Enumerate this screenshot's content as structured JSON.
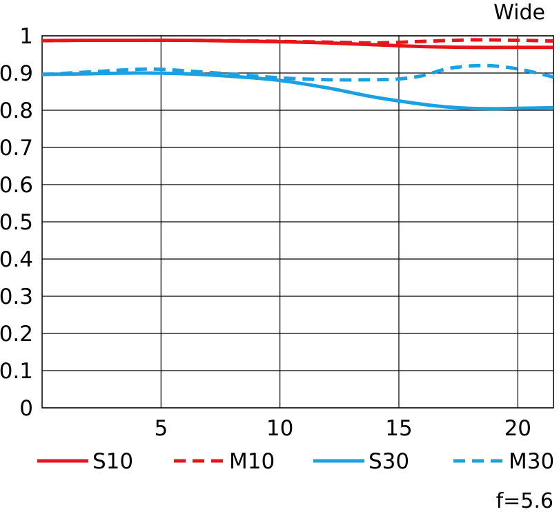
{
  "chart_data": {
    "type": "line",
    "title": "Wide",
    "footnote": "f=5.6",
    "xlabel": "",
    "ylabel": "",
    "xlim": [
      0,
      21.5
    ],
    "ylim": [
      0,
      1
    ],
    "x_ticks": [
      5,
      10,
      15,
      20
    ],
    "x_tick_labels": [
      "5",
      "10",
      "15",
      "20"
    ],
    "y_ticks": [
      0,
      0.1,
      0.2,
      0.3,
      0.4,
      0.5,
      0.6,
      0.7,
      0.8,
      0.9,
      1
    ],
    "y_tick_labels": [
      "0",
      "0.1",
      "0.2",
      "0.3",
      "0.4",
      "0.5",
      "0.6",
      "0.7",
      "0.8",
      "0.9",
      "1"
    ],
    "grid": true,
    "legend_position": "bottom",
    "series": [
      {
        "name": "S10",
        "color": "#e8141c",
        "dashed": false,
        "x": [
          0,
          2,
          4,
          6,
          8,
          10,
          12,
          14,
          16,
          18,
          20,
          21.5
        ],
        "y": [
          0.987,
          0.988,
          0.988,
          0.988,
          0.986,
          0.984,
          0.981,
          0.976,
          0.971,
          0.969,
          0.969,
          0.969
        ]
      },
      {
        "name": "M10",
        "color": "#e8141c",
        "dashed": true,
        "x": [
          0,
          2,
          4,
          6,
          8,
          10,
          12,
          14,
          16,
          18,
          20,
          21.5
        ],
        "y": [
          0.987,
          0.988,
          0.988,
          0.988,
          0.987,
          0.985,
          0.983,
          0.981,
          0.985,
          0.989,
          0.988,
          0.986
        ]
      },
      {
        "name": "S30",
        "color": "#1ba0e2",
        "dashed": false,
        "x": [
          0,
          2,
          4,
          6,
          8,
          10,
          12,
          14,
          16,
          17,
          18,
          19,
          20,
          21.5
        ],
        "y": [
          0.896,
          0.898,
          0.9,
          0.898,
          0.891,
          0.88,
          0.86,
          0.835,
          0.816,
          0.809,
          0.805,
          0.804,
          0.805,
          0.807
        ]
      },
      {
        "name": "M30",
        "color": "#1ba0e2",
        "dashed": true,
        "x": [
          0,
          2,
          4,
          5,
          6,
          8,
          10,
          12,
          14,
          15,
          16,
          17,
          18,
          19,
          20,
          21,
          21.5
        ],
        "y": [
          0.896,
          0.903,
          0.91,
          0.91,
          0.906,
          0.897,
          0.887,
          0.882,
          0.882,
          0.884,
          0.893,
          0.911,
          0.919,
          0.919,
          0.911,
          0.897,
          0.889
        ]
      }
    ]
  }
}
